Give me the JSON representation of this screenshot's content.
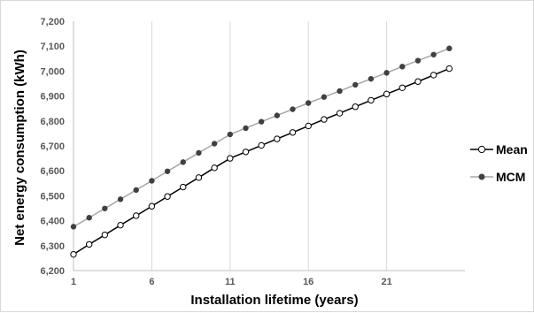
{
  "chart_data": {
    "type": "line",
    "title": "",
    "xlabel": "Installation lifetime (years)",
    "ylabel": "Net energy consumption (kWh)",
    "x": [
      1,
      2,
      3,
      4,
      5,
      6,
      7,
      8,
      9,
      10,
      11,
      12,
      13,
      14,
      15,
      16,
      17,
      18,
      19,
      20,
      21,
      22,
      23,
      24,
      25
    ],
    "x_ticks": [
      1,
      6,
      11,
      16,
      21
    ],
    "x_tick_labels": [
      "1",
      "6",
      "11",
      "16",
      "21"
    ],
    "xlim": [
      1,
      26
    ],
    "ylim": [
      6200,
      7200
    ],
    "y_ticks": [
      6200,
      6300,
      6400,
      6500,
      6600,
      6700,
      6800,
      6900,
      7000,
      7100,
      7200
    ],
    "y_tick_labels": [
      "6,200",
      "6,300",
      "6,400",
      "6,500",
      "6,600",
      "6,700",
      "6,800",
      "6,900",
      "7,000",
      "7,100",
      "7,200"
    ],
    "grid": "vertical",
    "legend_position": "right",
    "series": [
      {
        "name": "Mean",
        "line_color": "#000000",
        "marker": "open-circle",
        "marker_fill": "#ffffff",
        "values": [
          6265,
          6305,
          6343,
          6382,
          6420,
          6458,
          6497,
          6535,
          6573,
          6612,
          6650,
          6676,
          6702,
          6728,
          6754,
          6780,
          6806,
          6831,
          6857,
          6883,
          6908,
          6933,
          6958,
          6984,
          7010
        ]
      },
      {
        "name": "MCM",
        "line_color": "#a6a6a6",
        "marker": "filled-circle",
        "marker_fill": "#404040",
        "values": [
          6376,
          6412,
          6449,
          6486,
          6523,
          6560,
          6598,
          6635,
          6672,
          6709,
          6746,
          6771,
          6797,
          6822,
          6847,
          6872,
          6896,
          6920,
          6945,
          6969,
          6993,
          7018,
          7042,
          7066,
          7091
        ]
      }
    ]
  }
}
